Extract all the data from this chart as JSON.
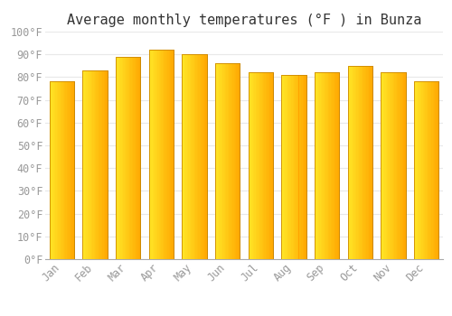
{
  "title": "Average monthly temperatures (°F ) in Bunza",
  "months": [
    "Jan",
    "Feb",
    "Mar",
    "Apr",
    "May",
    "Jun",
    "Jul",
    "Aug",
    "Sep",
    "Oct",
    "Nov",
    "Dec"
  ],
  "values": [
    78,
    83,
    89,
    92,
    90,
    86,
    82,
    81,
    82,
    85,
    82,
    78
  ],
  "bar_color_face": "#FFA500",
  "bar_color_light": "#FFD700",
  "bar_color_edge": "#CC8800",
  "background_color": "#FFFFFF",
  "grid_color": "#E8E8E8",
  "ylim": [
    0,
    100
  ],
  "yticks": [
    0,
    10,
    20,
    30,
    40,
    50,
    60,
    70,
    80,
    90,
    100
  ],
  "title_fontsize": 11,
  "tick_fontsize": 8.5,
  "font_family": "monospace",
  "tick_color": "#999999",
  "title_color": "#333333"
}
